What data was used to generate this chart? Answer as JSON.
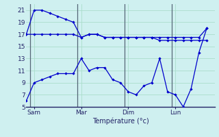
{
  "background_color": "#cff0f0",
  "grid_color": "#aaddcc",
  "line_color": "#0000cc",
  "vline_color": "#556677",
  "xlabel": "Température (°c)",
  "ylim": [
    5,
    22
  ],
  "xlim": [
    0,
    24
  ],
  "yticks": [
    5,
    7,
    9,
    11,
    13,
    15,
    17,
    19,
    21
  ],
  "xtick_positions": [
    1,
    7,
    13,
    19
  ],
  "day_labels": [
    "Sam",
    "Mar",
    "Dim",
    "Lun"
  ],
  "vline_positions": [
    0.5,
    6.5,
    12.5,
    18.5
  ],
  "line1_x": [
    0,
    1,
    2,
    3,
    4,
    5,
    6,
    7,
    8,
    9,
    10,
    11,
    12,
    13,
    14,
    15,
    16,
    17,
    18,
    19,
    20,
    21,
    22,
    23
  ],
  "line1_y": [
    6,
    9,
    9.5,
    10,
    10.5,
    10.5,
    10.5,
    13,
    11,
    11.5,
    11.5,
    9.5,
    9,
    7.5,
    7,
    8.5,
    9,
    13,
    7.5,
    7,
    5,
    8,
    14,
    18
  ],
  "line2_x": [
    0,
    1,
    2,
    3,
    4,
    5,
    6,
    7,
    8,
    9,
    10,
    11,
    12,
    13,
    14,
    15,
    16,
    17,
    18,
    19,
    20,
    21,
    22,
    23
  ],
  "line2_y": [
    17,
    21,
    21,
    20.5,
    20,
    19.5,
    19,
    16.5,
    17,
    17,
    16.5,
    16.5,
    16.5,
    16.5,
    16.5,
    16.5,
    16.5,
    16.5,
    16.5,
    16.5,
    16.5,
    16.5,
    16.5,
    18
  ],
  "line3_x": [
    0,
    1,
    2,
    3,
    4,
    5,
    6,
    7,
    8,
    9,
    10,
    11,
    12,
    13,
    14,
    15,
    16,
    17,
    18,
    19,
    20,
    21,
    22,
    23
  ],
  "line3_y": [
    17,
    17,
    17,
    17,
    17,
    17,
    17,
    16.5,
    17,
    17,
    16.5,
    16.5,
    16.5,
    16.5,
    16.5,
    16.5,
    16.5,
    16,
    16,
    16,
    16,
    16,
    16,
    16
  ]
}
